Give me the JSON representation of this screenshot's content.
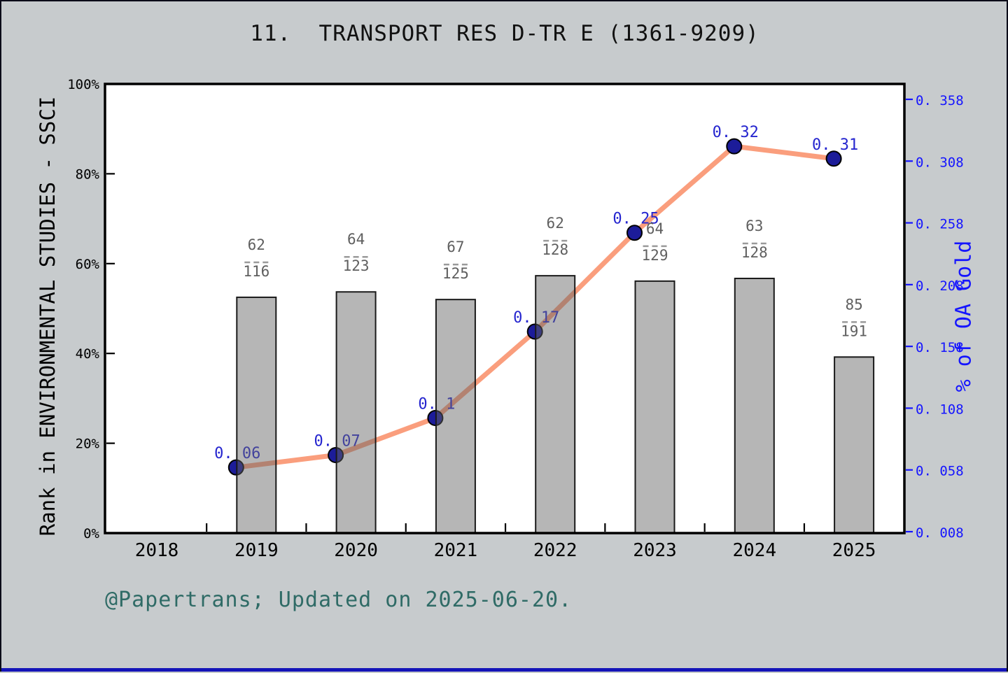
{
  "title": "11.  TRANSPORT RES D-TR E (1361-9209)",
  "footer": "@Papertrans; Updated on 2025-06-20.",
  "left_axis": {
    "label": "Rank in ENVIRONMENTAL STUDIES - SSCI",
    "ticks": [
      "0%",
      "20%",
      "40%",
      "60%",
      "80%",
      "100%"
    ],
    "tick_values_percent": [
      0,
      20,
      40,
      60,
      80,
      100
    ]
  },
  "right_axis": {
    "label": "% of OA Gold",
    "ticks": [
      "0. 008",
      "0. 058",
      "0. 108",
      "0. 158",
      "0. 208",
      "0. 258",
      "0. 308",
      "0. 358"
    ],
    "tick_values": [
      0.008,
      0.058,
      0.108,
      0.158,
      0.208,
      0.258,
      0.308,
      0.358
    ]
  },
  "x_axis": {
    "ticks": [
      "2018",
      "2019",
      "2020",
      "2021",
      "2022",
      "2023",
      "2024",
      "2025"
    ]
  },
  "chart_data": {
    "type": "combo-bar-line",
    "categories": [
      2019,
      2020,
      2021,
      2022,
      2023,
      2024,
      2025
    ],
    "bar_series": {
      "name": "Rank in ENVIRONMENTAL STUDIES - SSCI",
      "axis": "left",
      "unit": "percent",
      "bar_heights_percent": [
        52.5,
        53.7,
        52.0,
        57.3,
        56.1,
        56.7,
        39.2
      ],
      "fractions": [
        {
          "numerator": "62",
          "denominator": "116"
        },
        {
          "numerator": "64",
          "denominator": "123"
        },
        {
          "numerator": "67",
          "denominator": "125"
        },
        {
          "numerator": "62",
          "denominator": "128"
        },
        {
          "numerator": "64",
          "denominator": "129"
        },
        {
          "numerator": "63",
          "denominator": "128"
        },
        {
          "numerator": "85",
          "denominator": "191"
        }
      ]
    },
    "line_series": {
      "name": "% of OA Gold",
      "axis": "right",
      "values": [
        0.06,
        0.07,
        0.1,
        0.17,
        0.25,
        0.32,
        0.31
      ],
      "point_labels": [
        "0. 06",
        "0. 07",
        "0. 1",
        "0. 17",
        "0. 25",
        "0. 32",
        "0. 31"
      ]
    },
    "left_ylim_percent": [
      0,
      100
    ],
    "right_ylim": [
      0.008,
      0.358
    ],
    "grid": false,
    "legend": false
  },
  "colors": {
    "background": "#c7cbcd",
    "plot_background": "#ffffff",
    "axis": "#000000",
    "bar_fill_rgba": "rgba(100,100,100,0.47)",
    "bar_stroke": "#1a1a1a",
    "line": "#fa9e7d",
    "marker_fill": "#1c1c99",
    "marker_stroke": "#000000",
    "point_label": "#2525cf",
    "right_axis_blue": "#1515ff",
    "fraction_text": "#5f5f5f",
    "fraction_dash": "#9a9a9a",
    "footer_teal": "#2f6b66",
    "bottom_strip": "#1414b8"
  }
}
